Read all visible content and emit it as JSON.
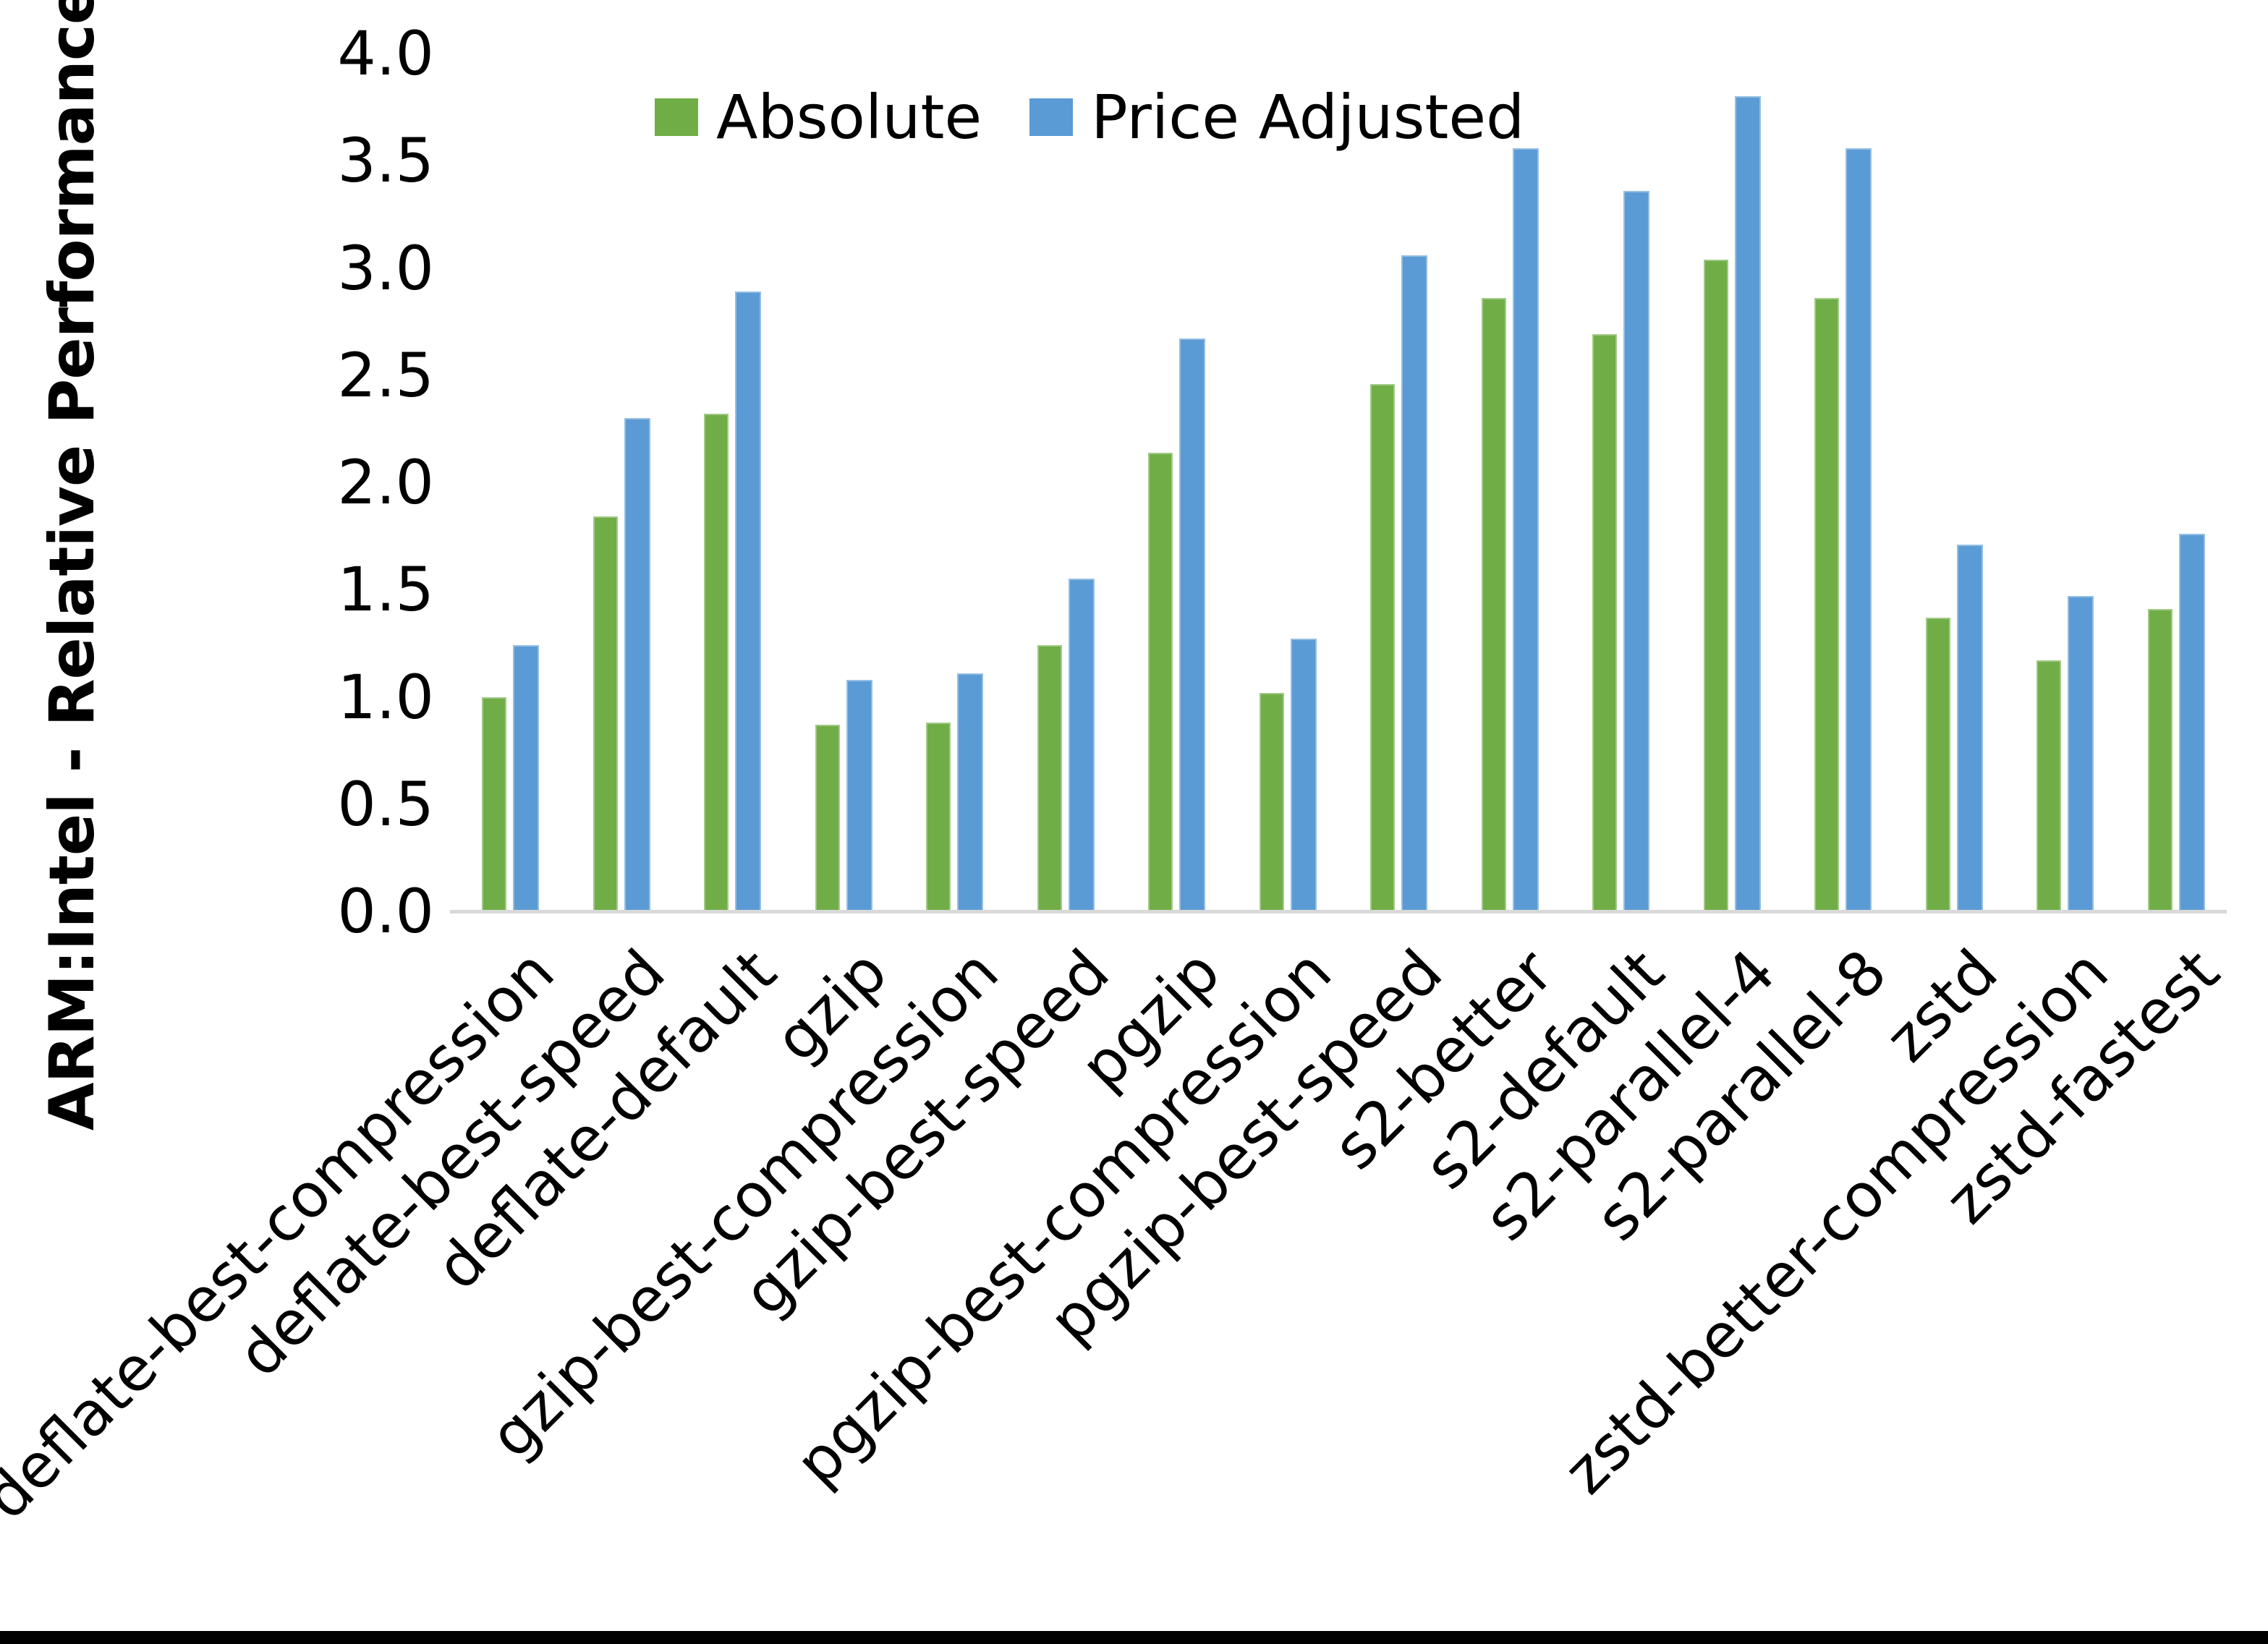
{
  "chart_data": {
    "type": "bar",
    "title": "",
    "xlabel": "",
    "ylabel": "ARM:Intel - Relative Performance",
    "ylim": [
      0.0,
      4.0
    ],
    "ytick_step": 0.5,
    "yticks": [
      "0.0",
      "0.5",
      "1.0",
      "1.5",
      "2.0",
      "2.5",
      "3.0",
      "3.5",
      "4.0"
    ],
    "grid": false,
    "legend_position": "top-center",
    "categories": [
      "deflate-best-compression",
      "deflate-best-speed",
      "deflate-default",
      "gzip",
      "gzip-best-compression",
      "gzip-best-speed",
      "pgzip",
      "pgzip-best-compression",
      "pgzip-best-speed",
      "s2-better",
      "s2-default",
      "s2-parallel-4",
      "s2-parallel-8",
      "zstd",
      "zstd-better-compression",
      "zstd-fastest"
    ],
    "series": [
      {
        "name": "Absolute",
        "color": "#70AD47",
        "values": [
          1.0,
          1.84,
          2.32,
          0.87,
          0.88,
          1.24,
          2.14,
          1.02,
          2.46,
          2.86,
          2.69,
          3.04,
          2.86,
          1.37,
          1.17,
          1.41
        ]
      },
      {
        "name": "Price Adjusted",
        "color": "#5B9BD5",
        "values": [
          1.24,
          2.3,
          2.89,
          1.08,
          1.11,
          1.55,
          2.67,
          1.27,
          3.06,
          3.56,
          3.36,
          3.8,
          3.56,
          1.71,
          1.47,
          1.76
        ]
      }
    ]
  },
  "colors": {
    "background": "#FFFFFF",
    "axis_line": "#D9D9D9",
    "text": "#000000",
    "bottom_border": "#000000"
  }
}
